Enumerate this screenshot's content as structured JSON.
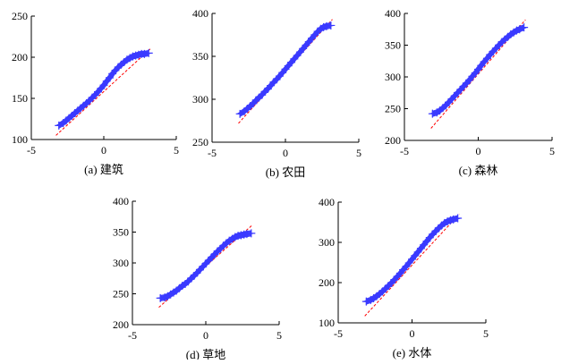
{
  "chart_data": [
    {
      "type": "scatter",
      "caption": "(a) 建筑",
      "xlim": [
        -5,
        5
      ],
      "ylim": [
        100,
        250
      ],
      "xticks": [
        "-5",
        "0",
        "5"
      ],
      "yticks": [
        "100",
        "150",
        "200",
        "250"
      ],
      "ref_line": {
        "x": [
          -3.3,
          3.2
        ],
        "y": [
          105,
          210
        ]
      },
      "points": [
        [
          -3.1,
          117
        ],
        [
          -2.8,
          120
        ],
        [
          -2.6,
          123
        ],
        [
          -2.4,
          126
        ],
        [
          -2.2,
          129
        ],
        [
          -2.0,
          132
        ],
        [
          -1.8,
          135
        ],
        [
          -1.6,
          138
        ],
        [
          -1.4,
          141
        ],
        [
          -1.2,
          144
        ],
        [
          -1.0,
          147
        ],
        [
          -0.8,
          151
        ],
        [
          -0.6,
          154
        ],
        [
          -0.4,
          158
        ],
        [
          -0.2,
          162
        ],
        [
          0.0,
          166
        ],
        [
          0.2,
          171
        ],
        [
          0.4,
          175
        ],
        [
          0.6,
          180
        ],
        [
          0.8,
          184
        ],
        [
          1.0,
          188
        ],
        [
          1.2,
          191
        ],
        [
          1.4,
          194
        ],
        [
          1.6,
          197
        ],
        [
          1.8,
          199
        ],
        [
          2.0,
          201
        ],
        [
          2.2,
          202
        ],
        [
          2.4,
          203
        ],
        [
          2.6,
          204
        ],
        [
          2.8,
          204
        ],
        [
          3.1,
          205
        ]
      ]
    },
    {
      "type": "scatter",
      "caption": "(b) 农田",
      "xlim": [
        -5,
        5
      ],
      "ylim": [
        250,
        400
      ],
      "xticks": [
        "-5",
        "0",
        "5"
      ],
      "yticks": [
        "250",
        "300",
        "350",
        "400"
      ],
      "ref_line": {
        "x": [
          -3.2,
          3.2
        ],
        "y": [
          272,
          393
        ]
      },
      "points": [
        [
          -3.1,
          283
        ],
        [
          -2.8,
          286
        ],
        [
          -2.6,
          289
        ],
        [
          -2.4,
          292
        ],
        [
          -2.2,
          295
        ],
        [
          -2.0,
          299
        ],
        [
          -1.8,
          302
        ],
        [
          -1.6,
          305
        ],
        [
          -1.4,
          309
        ],
        [
          -1.2,
          312
        ],
        [
          -1.0,
          316
        ],
        [
          -0.8,
          320
        ],
        [
          -0.6,
          323
        ],
        [
          -0.4,
          327
        ],
        [
          -0.2,
          331
        ],
        [
          0.0,
          335
        ],
        [
          0.2,
          339
        ],
        [
          0.4,
          343
        ],
        [
          0.6,
          347
        ],
        [
          0.8,
          351
        ],
        [
          1.0,
          355
        ],
        [
          1.2,
          359
        ],
        [
          1.4,
          363
        ],
        [
          1.6,
          367
        ],
        [
          1.8,
          371
        ],
        [
          2.0,
          375
        ],
        [
          2.2,
          379
        ],
        [
          2.4,
          382
        ],
        [
          2.6,
          384
        ],
        [
          2.8,
          385
        ],
        [
          3.1,
          386
        ]
      ]
    },
    {
      "type": "scatter",
      "caption": "(c) 森林",
      "xlim": [
        -5,
        5
      ],
      "ylim": [
        200,
        400
      ],
      "xticks": [
        "-5",
        "0",
        "5"
      ],
      "yticks": [
        "200",
        "250",
        "300",
        "350",
        "400"
      ],
      "ref_line": {
        "x": [
          -3.2,
          3.2
        ],
        "y": [
          219,
          390
        ]
      },
      "points": [
        [
          -3.1,
          242
        ],
        [
          -2.8,
          244
        ],
        [
          -2.6,
          247
        ],
        [
          -2.4,
          251
        ],
        [
          -2.2,
          255
        ],
        [
          -2.0,
          260
        ],
        [
          -1.8,
          265
        ],
        [
          -1.6,
          270
        ],
        [
          -1.4,
          275
        ],
        [
          -1.2,
          280
        ],
        [
          -1.0,
          285
        ],
        [
          -0.8,
          290
        ],
        [
          -0.6,
          295
        ],
        [
          -0.4,
          301
        ],
        [
          -0.2,
          306
        ],
        [
          0.0,
          312
        ],
        [
          0.2,
          318
        ],
        [
          0.4,
          324
        ],
        [
          0.6,
          329
        ],
        [
          0.8,
          335
        ],
        [
          1.0,
          340
        ],
        [
          1.2,
          345
        ],
        [
          1.4,
          350
        ],
        [
          1.6,
          355
        ],
        [
          1.8,
          359
        ],
        [
          2.0,
          363
        ],
        [
          2.2,
          367
        ],
        [
          2.4,
          370
        ],
        [
          2.6,
          373
        ],
        [
          2.8,
          375
        ],
        [
          3.1,
          378
        ]
      ]
    },
    {
      "type": "scatter",
      "caption": "(d) 草地",
      "xlim": [
        -5,
        5
      ],
      "ylim": [
        200,
        400
      ],
      "xticks": [
        "-5",
        "0",
        "5"
      ],
      "yticks": [
        "200",
        "250",
        "300",
        "350",
        "400"
      ],
      "ref_line": {
        "x": [
          -3.2,
          3.2
        ],
        "y": [
          228,
          362
        ]
      },
      "points": [
        [
          -3.1,
          243
        ],
        [
          -2.8,
          244
        ],
        [
          -2.6,
          246
        ],
        [
          -2.4,
          249
        ],
        [
          -2.2,
          252
        ],
        [
          -2.0,
          255
        ],
        [
          -1.8,
          259
        ],
        [
          -1.6,
          263
        ],
        [
          -1.4,
          266
        ],
        [
          -1.2,
          270
        ],
        [
          -1.0,
          275
        ],
        [
          -0.8,
          279
        ],
        [
          -0.6,
          284
        ],
        [
          -0.4,
          289
        ],
        [
          -0.2,
          294
        ],
        [
          0.0,
          299
        ],
        [
          0.2,
          304
        ],
        [
          0.4,
          309
        ],
        [
          0.6,
          314
        ],
        [
          0.8,
          319
        ],
        [
          1.0,
          323
        ],
        [
          1.2,
          328
        ],
        [
          1.4,
          332
        ],
        [
          1.6,
          336
        ],
        [
          1.8,
          339
        ],
        [
          2.0,
          342
        ],
        [
          2.2,
          344
        ],
        [
          2.4,
          345
        ],
        [
          2.6,
          346
        ],
        [
          2.8,
          347
        ],
        [
          3.1,
          348
        ]
      ]
    },
    {
      "type": "scatter",
      "caption": "(e) 水体",
      "xlim": [
        -5,
        5
      ],
      "ylim": [
        100,
        400
      ],
      "xticks": [
        "-5",
        "0",
        "5"
      ],
      "yticks": [
        "100",
        "200",
        "300",
        "400"
      ],
      "ref_line": {
        "x": [
          -3.2,
          3.2
        ],
        "y": [
          117,
          370
        ]
      },
      "points": [
        [
          -3.1,
          153
        ],
        [
          -2.8,
          157
        ],
        [
          -2.6,
          161
        ],
        [
          -2.4,
          166
        ],
        [
          -2.2,
          172
        ],
        [
          -2.0,
          178
        ],
        [
          -1.8,
          185
        ],
        [
          -1.6,
          192
        ],
        [
          -1.4,
          199
        ],
        [
          -1.2,
          207
        ],
        [
          -1.0,
          215
        ],
        [
          -0.8,
          223
        ],
        [
          -0.6,
          232
        ],
        [
          -0.4,
          240
        ],
        [
          -0.2,
          249
        ],
        [
          0.0,
          258
        ],
        [
          0.2,
          267
        ],
        [
          0.4,
          276
        ],
        [
          0.6,
          285
        ],
        [
          0.8,
          294
        ],
        [
          1.0,
          303
        ],
        [
          1.2,
          312
        ],
        [
          1.4,
          320
        ],
        [
          1.6,
          328
        ],
        [
          1.8,
          335
        ],
        [
          2.0,
          342
        ],
        [
          2.2,
          348
        ],
        [
          2.4,
          352
        ],
        [
          2.6,
          355
        ],
        [
          2.8,
          357
        ],
        [
          3.1,
          360
        ]
      ]
    }
  ],
  "style": {
    "marker_color": "#3a3aff",
    "marker_shape": "plus",
    "ref_line_color": "#ff0000",
    "ref_line_style": "dashed",
    "axis_color": "#000000"
  }
}
